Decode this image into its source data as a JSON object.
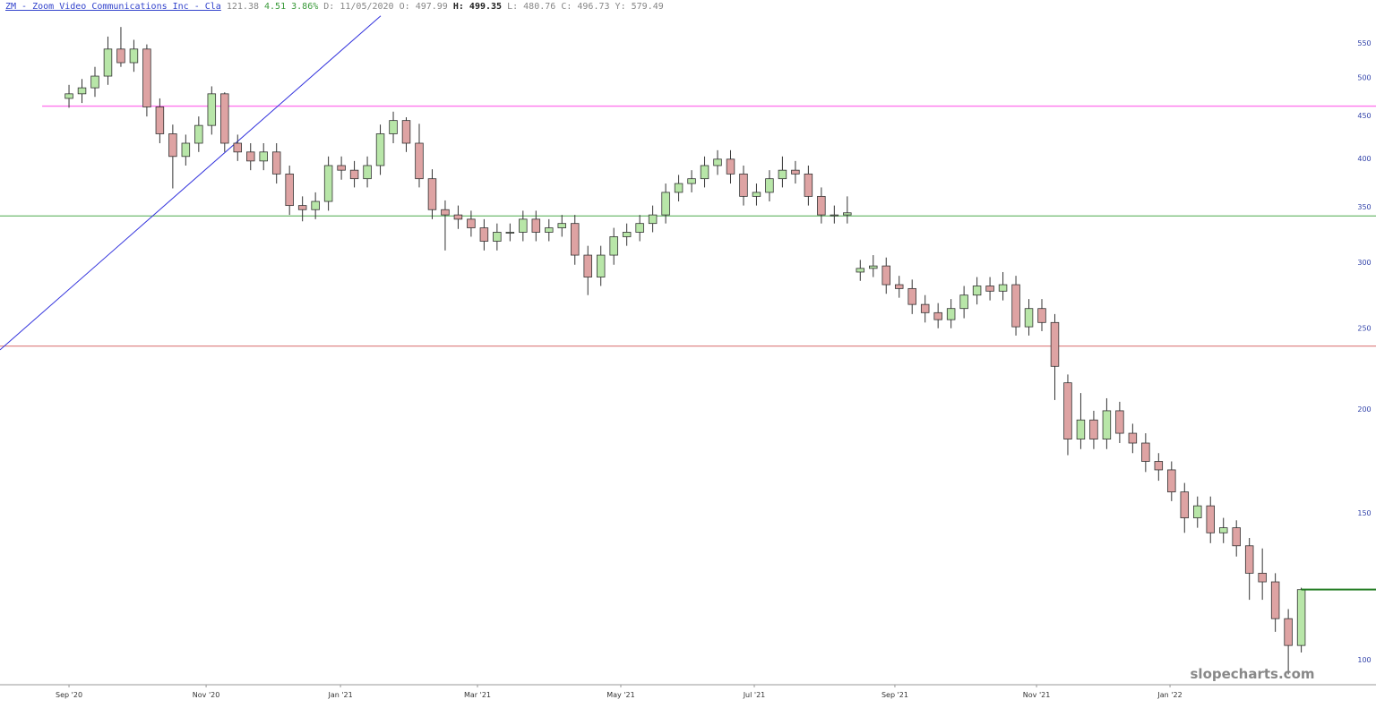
{
  "header": {
    "symbol": "ZM - Zoom Video Communications Inc - Cla",
    "last": 121.38,
    "change": 4.51,
    "change_pct": "3.86%",
    "fields": [
      {
        "label": "D:",
        "value": "11/05/2020"
      },
      {
        "label": "O:",
        "value": 497.99
      },
      {
        "label": "H:",
        "value": 499.35
      },
      {
        "label": "L:",
        "value": 480.76
      },
      {
        "label": "C:",
        "value": 496.73
      },
      {
        "label": "Y:",
        "value": 579.49
      }
    ]
  },
  "watermark": "slopecharts.com",
  "chart_data": {
    "type": "candlestick",
    "yscale": "log",
    "up_color": "#b8e6a8",
    "down_color": "#dea3a3",
    "open": [
      472,
      478,
      486,
      502,
      541,
      521,
      541,
      461,
      428,
      402,
      417,
      438,
      478,
      417,
      407,
      397,
      407,
      383,
      351,
      347,
      355,
      392,
      387,
      378,
      392,
      428,
      444,
      417,
      378,
      347,
      342,
      338,
      330,
      318,
      326,
      326,
      338,
      326,
      330,
      334,
      306,
      288,
      306,
      322,
      326,
      334,
      342,
      364,
      373,
      378,
      392,
      399,
      383,
      360,
      364,
      378,
      387,
      383,
      360,
      342,
      342,
      292,
      295,
      297,
      282,
      279,
      267,
      261,
      256,
      264,
      274,
      281,
      277,
      282,
      251,
      264,
      254,
      215,
      184,
      194,
      184,
      199,
      187,
      182,
      173,
      169,
      159,
      148,
      153,
      142,
      144,
      137,
      127,
      124,
      112,
      104
    ],
    "high": [
      490,
      498,
      515,
      560,
      575,
      555,
      548,
      472,
      439,
      427,
      449,
      488,
      480,
      427,
      417,
      417,
      417,
      392,
      360,
      364,
      402,
      402,
      397,
      402,
      439,
      455,
      448,
      440,
      388,
      356,
      351,
      346,
      338,
      334,
      334,
      346,
      346,
      338,
      342,
      342,
      314,
      314,
      330,
      334,
      342,
      351,
      373,
      382,
      387,
      402,
      409,
      409,
      392,
      373,
      387,
      402,
      397,
      392,
      369,
      351,
      360,
      302,
      306,
      304,
      289,
      286,
      274,
      268,
      271,
      281,
      288,
      288,
      292,
      289,
      271,
      271,
      260,
      220,
      209,
      199,
      206,
      204,
      192,
      187,
      177,
      173,
      163,
      157,
      157,
      148,
      147,
      140,
      136,
      127,
      115,
      122
    ],
    "low": [
      460,
      466,
      474,
      490,
      515,
      508,
      449,
      417,
      368,
      392,
      407,
      427,
      407,
      397,
      387,
      387,
      373,
      342,
      336,
      338,
      346,
      377,
      369,
      369,
      382,
      417,
      407,
      369,
      338,
      310,
      329,
      322,
      310,
      310,
      318,
      318,
      318,
      318,
      322,
      298,
      274,
      281,
      298,
      314,
      318,
      326,
      334,
      355,
      364,
      369,
      382,
      373,
      351,
      351,
      355,
      369,
      373,
      351,
      334,
      334,
      334,
      285,
      288,
      275,
      272,
      260,
      254,
      250,
      250,
      257,
      267,
      270,
      270,
      245,
      245,
      248,
      205,
      176,
      179,
      179,
      179,
      182,
      177,
      168,
      164,
      155,
      142,
      144,
      138,
      138,
      133,
      118,
      118,
      108,
      96,
      102
    ],
    "close": [
      478,
      486,
      502,
      541,
      521,
      541,
      461,
      428,
      402,
      417,
      438,
      478,
      417,
      407,
      397,
      407,
      383,
      351,
      347,
      355,
      392,
      387,
      378,
      392,
      428,
      444,
      417,
      378,
      347,
      342,
      338,
      330,
      318,
      326,
      326,
      338,
      326,
      330,
      334,
      306,
      288,
      306,
      322,
      326,
      334,
      342,
      364,
      373,
      378,
      392,
      399,
      383,
      360,
      364,
      378,
      387,
      383,
      360,
      342,
      342,
      344,
      295,
      297,
      282,
      279,
      267,
      261,
      256,
      264,
      274,
      281,
      277,
      282,
      251,
      264,
      254,
      225,
      184,
      194,
      184,
      199,
      187,
      182,
      173,
      169,
      159,
      148,
      153,
      142,
      144,
      137,
      127,
      124,
      112,
      104,
      121.38
    ],
    "xlim": [
      -5.32,
      100.76
    ],
    "xticks": [
      {
        "value": 0,
        "label": "Sep '20"
      },
      {
        "value": 10.57,
        "label": "Nov '20"
      },
      {
        "value": 20.93,
        "label": "Jan '21"
      },
      {
        "value": 31.49,
        "label": "Mar '21"
      },
      {
        "value": 42.54,
        "label": "May '21"
      },
      {
        "value": 52.83,
        "label": "Jul '21"
      },
      {
        "value": 63.67,
        "label": "Sep '21"
      },
      {
        "value": 74.59,
        "label": "Nov '21"
      },
      {
        "value": 84.88,
        "label": "Jan '22"
      }
    ],
    "ylim": [
      93.3,
      597
    ],
    "yticks": [
      100,
      150,
      200,
      250,
      300,
      350,
      400,
      450,
      500,
      550
    ],
    "hlines": [
      {
        "value": 462,
        "from": -2.07,
        "color": "#ff77ee"
      },
      {
        "value": 341,
        "from": -5.32,
        "color": "#7cc07c"
      },
      {
        "value": 238,
        "from": -5.32,
        "color": "#e08888"
      }
    ],
    "trendline": {
      "x": [
        -5.32,
        24.03
      ],
      "y": [
        235.5,
        593
      ],
      "color": "#3333dd"
    },
    "last_price_color": "#1e7a1e"
  }
}
